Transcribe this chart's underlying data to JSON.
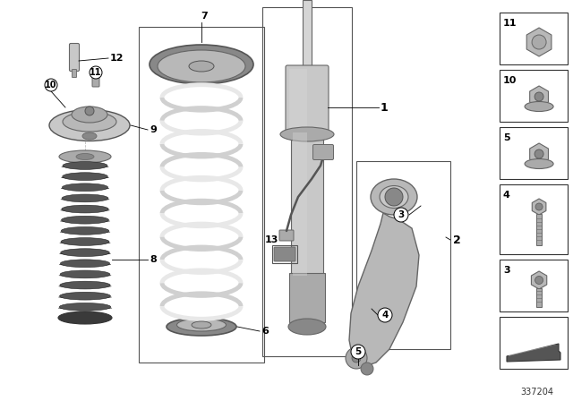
{
  "bg_color": "#ffffff",
  "diagram_number": "337204",
  "colors": {
    "light_gray": "#c8c8c8",
    "mid_gray": "#aaaaaa",
    "dark_gray": "#888888",
    "very_dark": "#555555",
    "rubber_dark": "#3a3a3a",
    "rubber_mid": "#555555",
    "outline": "#666666",
    "coil_color": "#e8e8e8",
    "coil_shadow": "#d0d0d0",
    "seat_color": "#909090",
    "silver": "#b8b8b8",
    "silver_light": "#d5d5d5",
    "black": "#222222",
    "white": "#ffffff",
    "box_border": "#555555"
  }
}
